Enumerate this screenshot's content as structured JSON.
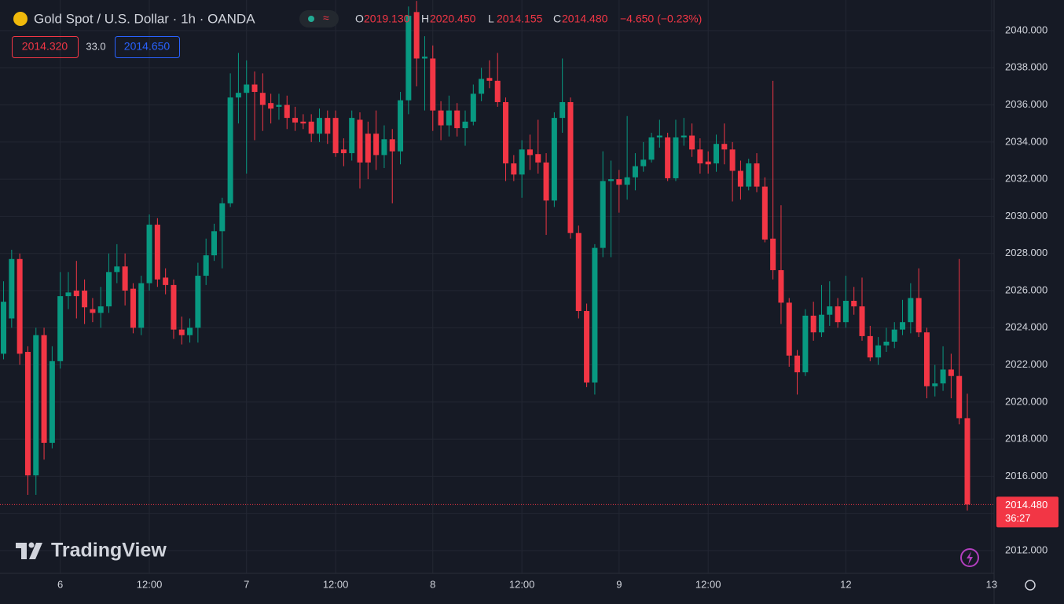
{
  "chart_data": {
    "type": "candlestick",
    "title": "Gold Spot / U.S. Dollar · 1h · OANDA",
    "open": [
      2022.6,
      2024.5,
      2027.7,
      2022.7,
      2016.05,
      2023.6,
      2017.8,
      2022.2,
      2025.7,
      2026,
      2026,
      2025.0,
      2024.8,
      2025.15,
      2027.0,
      2027.3,
      2026.1,
      2024.0,
      2026.4,
      2029.55,
      2026.7,
      2026.3,
      2023.9,
      2023.6,
      2024.0,
      2026.8,
      2027.9,
      2029.2,
      2030.7,
      2036.4,
      2036.65,
      2037.1,
      2036.65,
      2036.1,
      2035.9,
      2036.0,
      2035.3,
      2035.1,
      2035.1,
      2034.45,
      2035.3,
      2035.3,
      2033.6,
      2033.4,
      2035.2,
      2034.45,
      2034.45,
      2033.3,
      2034.15,
      2033.5,
      2036.25,
      2041.0,
      2038.5,
      2038.5,
      2035.7,
      2034.9,
      2035.7,
      2034.75,
      2035.1,
      2036.6,
      2037.45,
      2037.3,
      2036.15,
      2032.85,
      2032.25,
      2033.6,
      2033.35,
      2032.9,
      2030.85,
      2035.3,
      2036.15,
      2029.1,
      2024.9,
      2021.05,
      2028.3,
      2031.9,
      2032.0,
      2031.7,
      2032.1,
      2032.7,
      2033.05,
      2034.25,
      2034.25,
      2032.05,
      2034.25,
      2034.35,
      2033.6,
      2032.95,
      2032.85,
      2033.9,
      2033.6,
      2032.45,
      2031.6,
      2032.85,
      2031.6,
      2028.8,
      2027.1,
      2025.35,
      2022.5,
      2021.6,
      2024.65,
      2023.75,
      2024.7,
      2025.15,
      2024.3,
      2025.45,
      2025.15,
      2023.55,
      2022.4,
      2023.05,
      2023.25,
      2023.9,
      2024.3,
      2025.6,
      2023.75,
      2020.85,
      2021.0,
      2021.75,
      2021.4,
      2019.13
    ],
    "high": [
      2026.5,
      2028.2,
      2028.0,
      2023,
      2024,
      2024,
      2023,
      2027.0,
      2027.0,
      2027.6,
      2026.6,
      2025.6,
      2026.2,
      2028,
      2028.5,
      2028.0,
      2026.4,
      2026.8,
      2030.1,
      2029.9,
      2027.2,
      2026.6,
      2024.6,
      2024.5,
      2027.5,
      2028.8,
      2029.6,
      2031.0,
      2037.7,
      2038.8,
      2038.4,
      2037.8,
      2037.7,
      2036.6,
      2036.6,
      2036.5,
      2035.9,
      2035.5,
      2035.5,
      2035.8,
      2035.7,
      2035.7,
      2034.2,
      2035.7,
      2035.6,
      2035.1,
      2035.7,
      2034.9,
      2034.7,
      2036.7,
      2041.3,
      2041.6,
      2039.7,
      2039.2,
      2036.2,
      2036.5,
      2036.1,
      2035.7,
      2037.1,
      2038.0,
      2038.4,
      2038.8,
      2036.4,
      2033.3,
      2034.1,
      2034.4,
      2035.2,
      2033.4,
      2035.6,
      2038.5,
      2036.4,
      2029.5,
      2025.3,
      2028.5,
      2033.5,
      2033.0,
      2032.5,
      2035.4,
      2033.4,
      2034.0,
      2034.5,
      2035.2,
      2034.5,
      2035.2,
      2035.3,
      2035.0,
      2034.2,
      2033.5,
      2034.4,
      2035.0,
      2034.0,
      2033.0,
      2033.1,
      2033.4,
      2032.1,
      2037.3,
      2030.6,
      2025.6,
      2022.8,
      2025.0,
      2025.4,
      2026.3,
      2026.5,
      2025.6,
      2026.8,
      2026.2,
      2026.7,
      2024.1,
      2023.5,
      2024.0,
      2024.3,
      2025.5,
      2026.4,
      2027.2,
      2024.0,
      2022.0,
      2023.0,
      2022.6,
      2027.7,
      2020.45
    ],
    "low": [
      2022.3,
      2024.0,
      2022.0,
      2015.0,
      2015.0,
      2016.9,
      2017.5,
      2021.8,
      2025,
      2024.5,
      2024.2,
      2024.3,
      2024.0,
      2024.8,
      2026.4,
      2025.2,
      2023.7,
      2023.6,
      2026.0,
      2026.2,
      2025.8,
      2023.4,
      2023.1,
      2023.2,
      2023.2,
      2026.3,
      2027.6,
      2027.2,
      2030.5,
      2035.0,
      2032.3,
      2034.1,
      2034.6,
      2035.0,
      2035.2,
      2034.7,
      2034.6,
      2034.7,
      2034.0,
      2034.0,
      2033.9,
      2033.2,
      2032.7,
      2033.0,
      2031.5,
      2032.0,
      2032.5,
      2032.6,
      2030.7,
      2032.8,
      2035.5,
      2037.0,
      2035.7,
      2034.6,
      2034.1,
      2034.3,
      2034.3,
      2033.8,
      2034.9,
      2036.2,
      2036.9,
      2035.9,
      2031.9,
      2031.9,
      2031.0,
      2032.5,
      2032.3,
      2029.0,
      2030.5,
      2034.5,
      2028.8,
      2024.5,
      2020.8,
      2020.4,
      2027.8,
      2027.8,
      2030.2,
      2030.9,
      2031.4,
      2032.4,
      2032.9,
      2033.7,
      2031.9,
      2031.9,
      2033.8,
      2033.2,
      2032.3,
      2032.3,
      2032.4,
      2032.8,
      2030.8,
      2030.9,
      2031.4,
      2031.3,
      2028.6,
      2026.6,
      2024.2,
      2021.9,
      2020.4,
      2021.4,
      2023.3,
      2023.5,
      2024.1,
      2024.0,
      2024.0,
      2024.7,
      2023.3,
      2022.2,
      2022.0,
      2022.7,
      2022.9,
      2023.6,
      2023.7,
      2023.5,
      2020.2,
      2020.3,
      2020.6,
      2020.2,
      2018.8,
      2014.155
    ],
    "close": [
      2025.4,
      2027.7,
      2022.6,
      2016.05,
      2023.6,
      2017.8,
      2022.2,
      2025.7,
      2025.9,
      2025.7,
      2025.1,
      2024.8,
      2025.15,
      2027.0,
      2027.3,
      2026.0,
      2024.0,
      2026.4,
      2029.55,
      2026.6,
      2026.3,
      2023.9,
      2023.6,
      2024.0,
      2026.8,
      2027.9,
      2029.2,
      2030.7,
      2036.4,
      2036.65,
      2037.1,
      2036.7,
      2036.0,
      2035.8,
      2036.0,
      2035.3,
      2035.05,
      2035.0,
      2034.45,
      2035.3,
      2034.45,
      2033.4,
      2033.4,
      2035.3,
      2032.9,
      2032.9,
      2033.3,
      2034.15,
      2033.5,
      2036.25,
      2040.8,
      2038.5,
      2038.6,
      2035.7,
      2034.9,
      2035.7,
      2034.75,
      2035.1,
      2036.6,
      2037.4,
      2037.3,
      2036.15,
      2032.85,
      2032.25,
      2033.6,
      2033.3,
      2032.9,
      2030.85,
      2035.3,
      2036.15,
      2029.1,
      2024.9,
      2021.05,
      2028.3,
      2031.9,
      2032.0,
      2031.7,
      2032.1,
      2032.7,
      2033.05,
      2034.25,
      2034.35,
      2032.05,
      2034.25,
      2034.35,
      2033.6,
      2032.85,
      2032.8,
      2033.9,
      2033.6,
      2032.45,
      2031.6,
      2032.85,
      2031.6,
      2028.75,
      2027.1,
      2025.35,
      2022.5,
      2021.6,
      2024.65,
      2023.75,
      2024.7,
      2025.15,
      2024.3,
      2025.45,
      2025.15,
      2023.55,
      2022.4,
      2023.05,
      2023.25,
      2023.9,
      2024.3,
      2025.6,
      2023.75,
      2020.85,
      2021.0,
      2021.75,
      2021.4,
      2019.13,
      2014.48
    ],
    "up_color": "#089981",
    "down_color": "#f23645",
    "ylim": [
      2010.56,
      2041.65
    ],
    "yticks": [
      {
        "value": 2012,
        "label": "2012.000"
      },
      {
        "value": 2014,
        "label": "2014.000"
      },
      {
        "value": 2016,
        "label": "2016.000"
      },
      {
        "value": 2018,
        "label": "2018.000"
      },
      {
        "value": 2020,
        "label": "2020.000"
      },
      {
        "value": 2022,
        "label": "2022.000"
      },
      {
        "value": 2024,
        "label": "2024.000"
      },
      {
        "value": 2026,
        "label": "2026.000"
      },
      {
        "value": 2028,
        "label": "2028.000"
      },
      {
        "value": 2030,
        "label": "2030.000"
      },
      {
        "value": 2032,
        "label": "2032.000"
      },
      {
        "value": 2034,
        "label": "2034.000"
      },
      {
        "value": 2036,
        "label": "2036.000"
      },
      {
        "value": 2038,
        "label": "2038.000"
      },
      {
        "value": 2040,
        "label": "2040.000"
      }
    ],
    "xlim": [
      -0.44,
      122.3
    ],
    "xticks": [
      {
        "value": 7,
        "label": "6"
      },
      {
        "value": 18,
        "label": "12:00"
      },
      {
        "value": 30,
        "label": "7"
      },
      {
        "value": 41,
        "label": "12:00"
      },
      {
        "value": 53,
        "label": "8"
      },
      {
        "value": 64,
        "label": "12:00"
      },
      {
        "value": 76,
        "label": "9"
      },
      {
        "value": 87,
        "label": "12:00"
      },
      {
        "value": 104,
        "label": "12"
      },
      {
        "value": 122,
        "label": "13"
      }
    ],
    "grid": true
  },
  "header": {
    "ohlc": [
      {
        "key": "O",
        "value": "2019.130"
      },
      {
        "key": "H",
        "value": "2020.450"
      },
      {
        "key": "L",
        "value": "2014.155"
      },
      {
        "key": "C",
        "value": "2014.480"
      }
    ],
    "change": "−4.650 (−0.23%)",
    "bid": "2014.320",
    "spread": "33.0",
    "ask": "2014.650",
    "last_price": "2014.480",
    "countdown": "36:27",
    "logo": "TradingView"
  }
}
